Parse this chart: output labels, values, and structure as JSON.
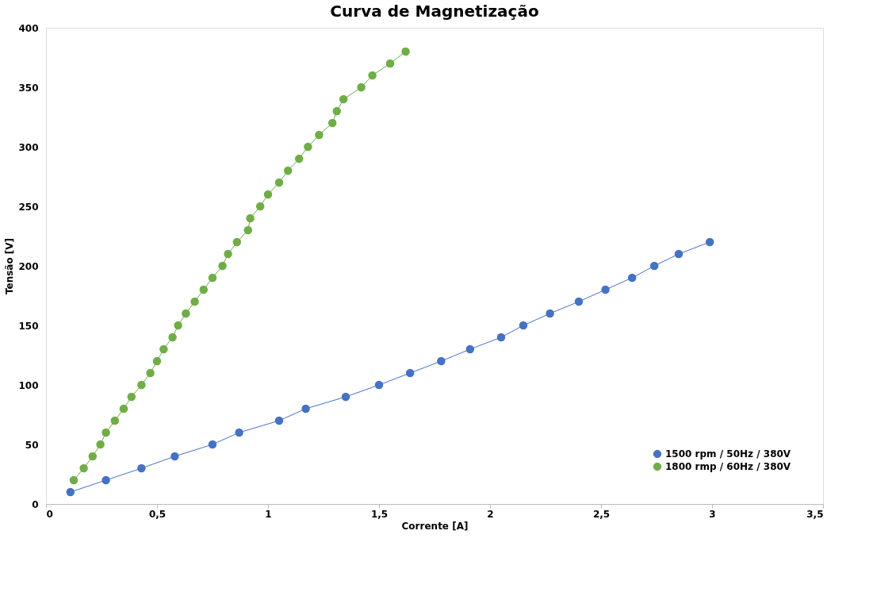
{
  "chart_data": {
    "type": "line",
    "title": "Curva de Magnetização",
    "xlabel": "Corrente  [A]",
    "ylabel": "Tensão [V]",
    "xlim": [
      0,
      3.5
    ],
    "xticks": [
      0,
      {
        "value": 0.5,
        "label": "0,5"
      },
      1,
      {
        "value": 1.5,
        "label": "1,5"
      },
      2,
      {
        "value": 2.5,
        "label": "2,5"
      },
      3,
      {
        "value": 3.5,
        "label": "3,5"
      }
    ],
    "ylim": [
      0,
      400
    ],
    "yticks": [
      0,
      50,
      100,
      150,
      200,
      250,
      300,
      350,
      400
    ],
    "grid": false,
    "legend": "bottom right",
    "marker": "circle",
    "line_style": "solid",
    "series": [
      {
        "name": "1500 rpm / 50Hz / 380V",
        "color": "#4472c4",
        "x": [
          0.11,
          0.27,
          0.43,
          0.58,
          0.75,
          0.87,
          1.05,
          1.17,
          1.35,
          1.5,
          1.64,
          1.78,
          1.91,
          2.05,
          2.15,
          2.27,
          2.4,
          2.52,
          2.64,
          2.74,
          2.85,
          2.99
        ],
        "values": [
          10,
          20,
          30,
          40,
          50,
          60,
          70,
          80,
          90,
          100,
          110,
          120,
          130,
          140,
          150,
          160,
          170,
          180,
          190,
          200,
          210,
          220
        ]
      },
      {
        "name": "1800 rmp / 60Hz / 380V",
        "color": "#70ad47",
        "x": [
          0.125,
          0.17,
          0.21,
          0.245,
          0.27,
          0.31,
          0.35,
          0.385,
          0.43,
          0.47,
          0.5,
          0.53,
          0.57,
          0.595,
          0.63,
          0.67,
          0.71,
          0.75,
          0.795,
          0.82,
          0.86,
          0.91,
          0.92,
          0.965,
          1.0,
          1.05,
          1.09,
          1.14,
          1.18,
          1.23,
          1.29,
          1.31,
          1.34,
          1.42,
          1.47,
          1.55,
          1.62
        ],
        "values": [
          20,
          30,
          40,
          50,
          60,
          70,
          80,
          90,
          100,
          110,
          120,
          130,
          140,
          150,
          160,
          170,
          180,
          190,
          200,
          210,
          220,
          230,
          240,
          250,
          260,
          270,
          280,
          290,
          300,
          310,
          320,
          330,
          340,
          350,
          360,
          370,
          380
        ]
      }
    ]
  }
}
